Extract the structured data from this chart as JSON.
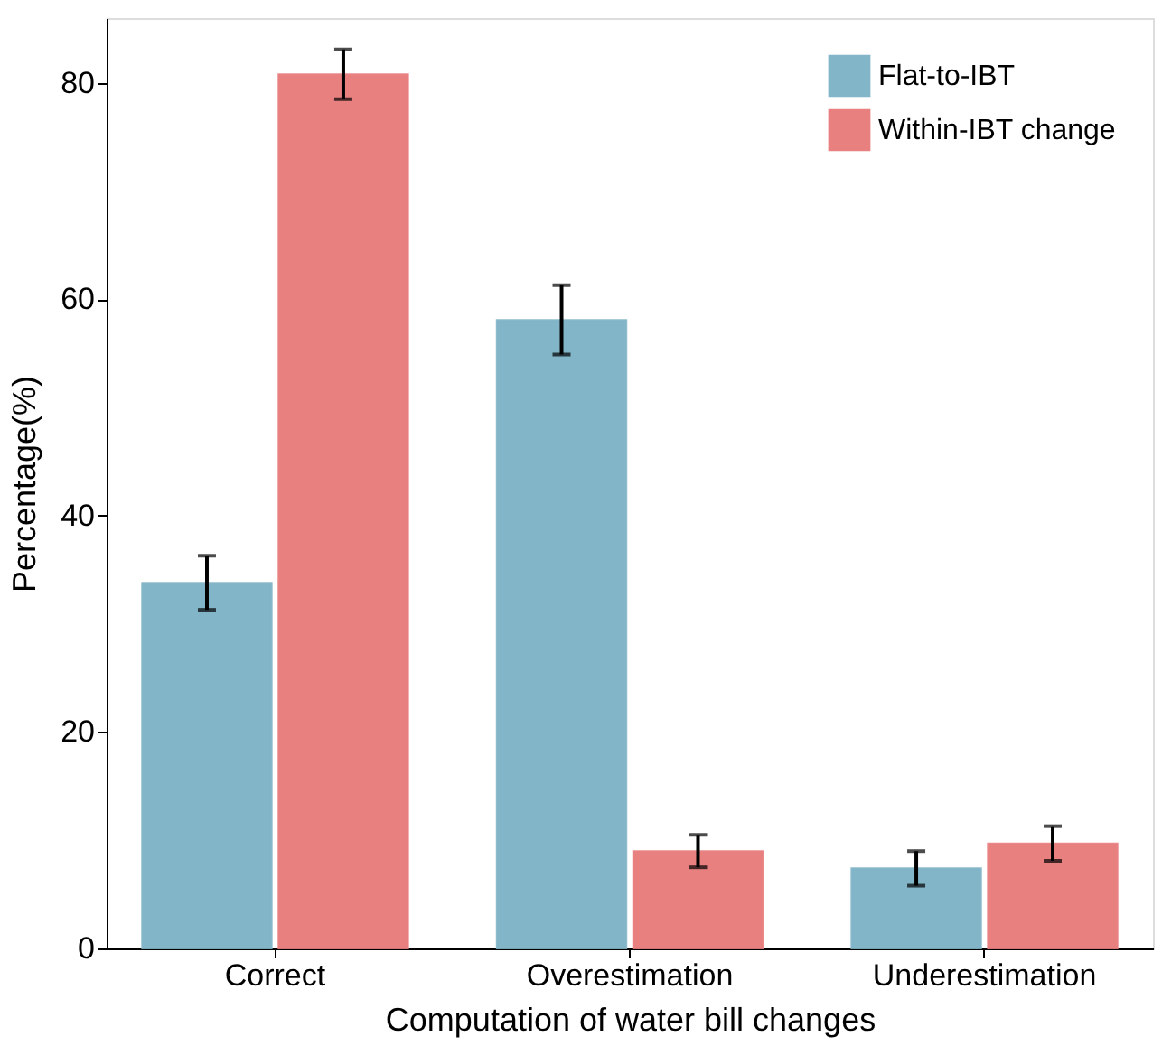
{
  "chart_data": {
    "type": "bar",
    "xlabel": "Computation of water bill changes",
    "ylabel": "Percentage(%)",
    "categories": [
      "Correct",
      "Overestimation",
      "Underestimation"
    ],
    "series": [
      {
        "name": "Flat-to-IBT",
        "color": "#82b5c8",
        "values": [
          33.8,
          58.1,
          7.4
        ],
        "errors": [
          2.5,
          3.2,
          1.6
        ]
      },
      {
        "name": "Within-IBT change",
        "color": "#e88080",
        "values": [
          80.8,
          9.0,
          9.7
        ],
        "errors": [
          2.3,
          1.5,
          1.6
        ]
      }
    ],
    "ylim": [
      0,
      86
    ],
    "yticks": [
      0,
      20,
      40,
      60,
      80
    ],
    "grid": false,
    "legend": "top right"
  }
}
